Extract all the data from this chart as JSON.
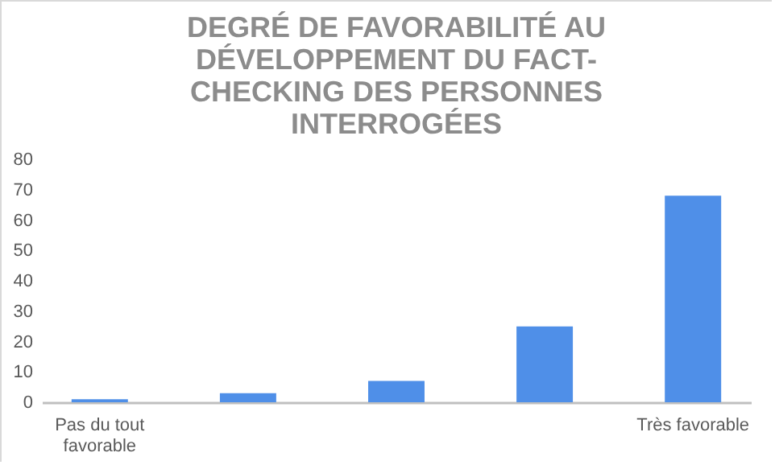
{
  "chart_data": {
    "type": "bar",
    "title": "DEGRÉ DE FAVORABILITÉ AU DÉVELOPPEMENT DU FACT-CHECKING DES PERSONNES INTERROGÉES",
    "categories": [
      "Pas du tout favorable",
      null,
      null,
      null,
      "Très favorable"
    ],
    "values": [
      1,
      3,
      7,
      25,
      68
    ],
    "color": "#4f8fe8",
    "ylim": [
      0,
      80
    ],
    "yticks": [
      0,
      10,
      20,
      30,
      40,
      50,
      60,
      70,
      80
    ],
    "grid": false
  }
}
